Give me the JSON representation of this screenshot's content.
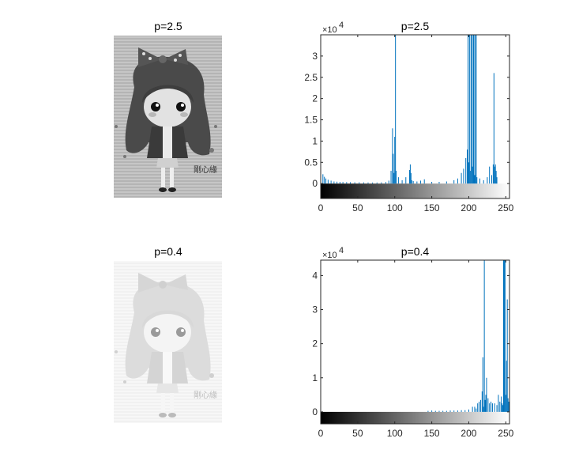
{
  "figure": {
    "images": [
      {
        "title": "p=2.5",
        "tone": "dark"
      },
      {
        "title": "p=0.4",
        "tone": "light"
      }
    ],
    "image_overlay_text": "剛心緣"
  },
  "chart_data": [
    {
      "type": "bar",
      "title": "p=2.5",
      "xlim": [
        0,
        255
      ],
      "ylim": [
        -3500,
        35000
      ],
      "xticks": [
        0,
        50,
        100,
        150,
        200,
        250
      ],
      "yticks": [
        0,
        5000,
        10000,
        15000,
        20000,
        25000,
        30000
      ],
      "ytick_labels": [
        "0",
        "0.5",
        "1",
        "1.5",
        "2",
        "2.5",
        "3"
      ],
      "y_multiplier": "×10",
      "y_multiplier_exp": "4",
      "colorbar": "grayscale",
      "bar_color": "#0072bd",
      "x": [
        3,
        5,
        7,
        10,
        14,
        18,
        22,
        26,
        30,
        35,
        40,
        46,
        52,
        58,
        64,
        70,
        76,
        82,
        88,
        92,
        95,
        97,
        98,
        99,
        100,
        101,
        102,
        105,
        110,
        115,
        120,
        121,
        122,
        123,
        125,
        130,
        135,
        140,
        150,
        160,
        170,
        180,
        185,
        190,
        193,
        196,
        198,
        199,
        200,
        201,
        202,
        203,
        204,
        205,
        206,
        207,
        208,
        209,
        210,
        211,
        215,
        220,
        225,
        228,
        231,
        233,
        234,
        235,
        236,
        237,
        238
      ],
      "values": [
        2200,
        1600,
        1200,
        900,
        700,
        500,
        450,
        400,
        380,
        350,
        320,
        300,
        300,
        280,
        260,
        250,
        250,
        280,
        350,
        700,
        3000,
        13000,
        7000,
        2500,
        11000,
        35000,
        3000,
        1500,
        800,
        1500,
        3200,
        4500,
        2500,
        800,
        600,
        500,
        700,
        1000,
        400,
        400,
        500,
        800,
        1200,
        2500,
        3500,
        6000,
        8000,
        35000,
        5000,
        35000,
        3000,
        35000,
        35000,
        4000,
        35000,
        35000,
        2000,
        35000,
        35000,
        1500,
        1200,
        800,
        1500,
        4000,
        2000,
        4500,
        26000,
        4000,
        4500,
        3000,
        1500
      ]
    },
    {
      "type": "bar",
      "title": "p=0.4",
      "xlim": [
        0,
        255
      ],
      "ylim": [
        -3500,
        44500
      ],
      "xticks": [
        0,
        50,
        100,
        150,
        200,
        250
      ],
      "yticks": [
        0,
        10000,
        20000,
        30000,
        40000
      ],
      "ytick_labels": [
        "0",
        "1",
        "2",
        "3",
        "4"
      ],
      "y_multiplier": "×10",
      "y_multiplier_exp": "4",
      "colorbar": "grayscale",
      "bar_color": "#0072bd",
      "x": [
        145,
        150,
        155,
        160,
        165,
        170,
        175,
        180,
        185,
        190,
        195,
        200,
        205,
        208,
        210,
        212,
        214,
        216,
        218,
        219,
        220,
        221,
        222,
        223,
        224,
        226,
        228,
        230,
        232,
        235,
        238,
        240,
        242,
        244,
        245,
        246,
        247,
        248,
        249,
        250,
        251,
        252,
        253,
        254
      ],
      "values": [
        300,
        400,
        300,
        300,
        300,
        300,
        400,
        400,
        400,
        500,
        500,
        700,
        1500,
        1500,
        1000,
        2500,
        3000,
        3500,
        6000,
        16000,
        1500,
        44500,
        3500,
        5000,
        10000,
        4000,
        2500,
        3000,
        2500,
        2500,
        2000,
        5000,
        3000,
        4500,
        2500,
        2000,
        44500,
        44500,
        44500,
        5000,
        15000,
        33000,
        4000,
        3000
      ]
    }
  ]
}
